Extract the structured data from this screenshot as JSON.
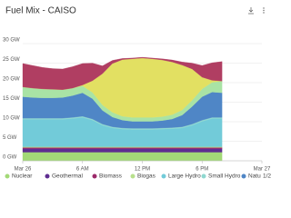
{
  "chart_data": {
    "type": "stacked_area",
    "title": "Fuel Mix - CAISO",
    "x": [
      0,
      1,
      2,
      3,
      4,
      5,
      6,
      7,
      8,
      9,
      10,
      11,
      12,
      13,
      14,
      15,
      16,
      17,
      18,
      19,
      20
    ],
    "xlim": [
      0,
      24
    ],
    "xticks": [
      {
        "value": 0,
        "label": "Mar 26"
      },
      {
        "value": 6,
        "label": "6 AM"
      },
      {
        "value": 12,
        "label": "12 PM"
      },
      {
        "value": 18,
        "label": "6 PM"
      },
      {
        "value": 24,
        "label": "Mar 27"
      }
    ],
    "ylim": [
      0,
      30
    ],
    "yticks": [
      {
        "value": 0,
        "label": "0 GW"
      },
      {
        "value": 5,
        "label": "5 GW"
      },
      {
        "value": 10,
        "label": "10 GW"
      },
      {
        "value": 15,
        "label": "15 GW"
      },
      {
        "value": 20,
        "label": "20 GW"
      },
      {
        "value": 25,
        "label": "25 GW"
      },
      {
        "value": 30,
        "label": "30 GW"
      }
    ],
    "grid": true,
    "legend": "bottom",
    "legend_page": "1/2",
    "series": [
      {
        "name": "Nuclear",
        "color": "#a3d977",
        "values": [
          2.2,
          2.2,
          2.2,
          2.2,
          2.2,
          2.2,
          2.2,
          2.2,
          2.2,
          2.2,
          2.2,
          2.2,
          2.2,
          2.2,
          2.2,
          2.2,
          2.2,
          2.2,
          2.2,
          2.2,
          2.2
        ]
      },
      {
        "name": "Geothermal",
        "color": "#5e2d91",
        "values": [
          0.9,
          0.9,
          0.9,
          0.9,
          0.9,
          0.9,
          0.9,
          0.9,
          0.9,
          0.9,
          0.9,
          0.9,
          0.9,
          0.9,
          0.9,
          0.9,
          0.9,
          0.9,
          0.9,
          0.9,
          0.9
        ]
      },
      {
        "name": "Biomass",
        "color": "#9c2a6a",
        "values": [
          0.3,
          0.3,
          0.3,
          0.3,
          0.3,
          0.3,
          0.3,
          0.3,
          0.3,
          0.3,
          0.3,
          0.3,
          0.3,
          0.3,
          0.3,
          0.3,
          0.3,
          0.3,
          0.3,
          0.3,
          0.3
        ]
      },
      {
        "name": "Biogas",
        "color": "#b8e08c",
        "values": [
          0.2,
          0.2,
          0.2,
          0.2,
          0.2,
          0.2,
          0.2,
          0.2,
          0.2,
          0.2,
          0.2,
          0.2,
          0.2,
          0.2,
          0.2,
          0.2,
          0.2,
          0.2,
          0.2,
          0.2,
          0.2
        ]
      },
      {
        "name": "Large Hydro",
        "color": "#72cbd9",
        "values": [
          7,
          7,
          7,
          7,
          7,
          7.2,
          7.5,
          6.8,
          5.5,
          4.8,
          4.5,
          4.4,
          4.4,
          4.4,
          4.5,
          4.6,
          4.8,
          5.5,
          6.5,
          7.2,
          7.2
        ]
      },
      {
        "name": "Small Hydro",
        "color": "#8fd8d0",
        "values": [
          0.3,
          0.3,
          0.3,
          0.3,
          0.3,
          0.3,
          0.3,
          0.3,
          0.3,
          0.3,
          0.3,
          0.3,
          0.3,
          0.3,
          0.3,
          0.3,
          0.3,
          0.3,
          0.3,
          0.3,
          0.3
        ]
      },
      {
        "name": "Natural Gas",
        "color": "#4f86c6",
        "values": [
          5.5,
          5.3,
          5.2,
          5.2,
          5.3,
          5.6,
          6,
          5.2,
          3.5,
          2.5,
          2,
          1.8,
          1.8,
          1.8,
          1.9,
          2.2,
          3,
          4.5,
          6,
          6.5,
          6.3
        ]
      },
      {
        "color": "#a9e3a5",
        "values": [
          2.5,
          2.4,
          2.3,
          2.2,
          2,
          1.9,
          1.8,
          1.6,
          1.4,
          1.2,
          1,
          1,
          1,
          1,
          1,
          1.1,
          1.3,
          1.6,
          2,
          2.5,
          3
        ]
      },
      {
        "color": "#e2e062",
        "values": [
          0,
          0,
          0,
          0,
          0,
          0,
          0.2,
          3,
          8,
          12.5,
          14.5,
          15,
          15.2,
          15,
          14.5,
          13.5,
          11.5,
          8,
          3,
          0.5,
          0
        ]
      },
      {
        "color": "#b03e62",
        "values": [
          6,
          5.8,
          5.5,
          5.3,
          5.3,
          5.5,
          5.5,
          4.5,
          2,
          0.8,
          0.3,
          0.2,
          0.2,
          0.2,
          0.3,
          0.5,
          0.8,
          1.5,
          3,
          4.5,
          5
        ]
      }
    ]
  }
}
